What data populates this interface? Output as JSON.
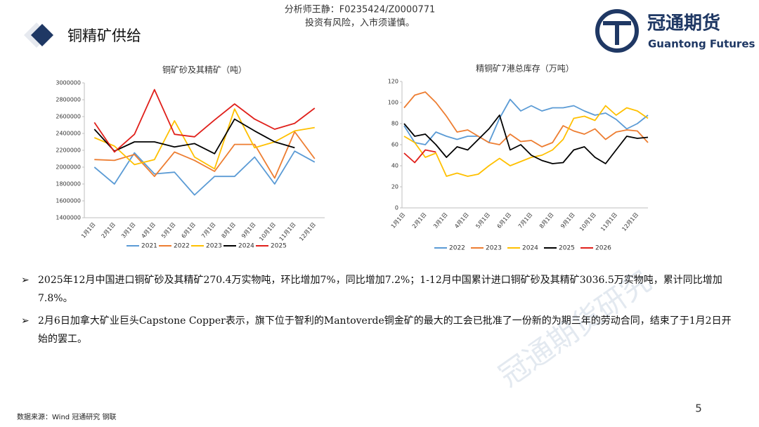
{
  "header": {
    "analyst": "分析师王静：F0235424/Z0000771",
    "risk": "投资有风险，入市须谨慎。",
    "section": "铜精矿供给",
    "logo_cn": "冠通期货",
    "logo_en": "Guantong Futures"
  },
  "chart_data": [
    {
      "type": "line",
      "title": "铜矿砂及其精矿（吨）",
      "categories": [
        "1月1日",
        "2月1日",
        "3月1日",
        "4月1日",
        "5月1日",
        "6月1日",
        "7月1日",
        "8月1日",
        "9月1日",
        "10月1日",
        "11月1日",
        "12月1日"
      ],
      "ylim": [
        1400000,
        3000000
      ],
      "yticks": [
        1400000,
        1600000,
        1800000,
        2000000,
        2200000,
        2400000,
        2600000,
        2800000,
        3000000
      ],
      "grid": false,
      "legend": "bottom",
      "series": [
        {
          "name": "2021",
          "color": "#5b9bd5",
          "values": [
            2000000,
            1800000,
            2170000,
            1920000,
            1940000,
            1670000,
            1890000,
            1890000,
            2120000,
            1800000,
            2190000,
            2060000
          ]
        },
        {
          "name": "2022",
          "color": "#ed7d31",
          "values": [
            2090000,
            2080000,
            2150000,
            1890000,
            2180000,
            2080000,
            1950000,
            2270000,
            2270000,
            1870000,
            2420000,
            2100000
          ]
        },
        {
          "name": "2023",
          "color": "#ffc000",
          "values": [
            2350000,
            2250000,
            2030000,
            2090000,
            2550000,
            2120000,
            1980000,
            2690000,
            2230000,
            2300000,
            2430000,
            2470000
          ]
        },
        {
          "name": "2024",
          "color": "#000000",
          "values": [
            2450000,
            2190000,
            2300000,
            2300000,
            2240000,
            2280000,
            2160000,
            2570000,
            2430000,
            2300000,
            2230000,
            null
          ]
        },
        {
          "name": "2025",
          "color": "#e0201b",
          "values": [
            2530000,
            2180000,
            2390000,
            2920000,
            2390000,
            2360000,
            2560000,
            2750000,
            2570000,
            2450000,
            2520000,
            2700000
          ]
        }
      ]
    },
    {
      "type": "line",
      "title": "精铜矿7港总库存（万吨）",
      "categories": [
        "1月1日",
        null,
        "2月1日",
        null,
        "3月1日",
        null,
        "4月1日",
        null,
        "5月1日",
        null,
        "6月1日",
        null,
        "7月1日",
        null,
        "8月1日",
        null,
        "9月1日",
        null,
        "10月1日",
        null,
        "11月1日",
        null,
        "12月1日",
        null
      ],
      "ylim": [
        0,
        120
      ],
      "yticks": [
        0,
        20,
        40,
        60,
        80,
        100,
        120
      ],
      "grid": false,
      "legend": "bottom",
      "series": [
        {
          "name": "2022",
          "color": "#5b9bd5",
          "values": [
            78,
            62,
            60,
            72,
            68,
            65,
            68,
            68,
            62,
            85,
            103,
            92,
            97,
            92,
            95,
            95,
            97,
            92,
            88,
            90,
            84,
            75,
            80,
            88
          ]
        },
        {
          "name": "2023",
          "color": "#ed7d31",
          "values": [
            95,
            107,
            110,
            100,
            87,
            72,
            74,
            68,
            62,
            60,
            70,
            63,
            64,
            58,
            62,
            78,
            73,
            70,
            75,
            65,
            72,
            74,
            73,
            62
          ]
        },
        {
          "name": "2024",
          "color": "#ffc000",
          "values": [
            68,
            62,
            48,
            52,
            30,
            33,
            30,
            32,
            40,
            47,
            40,
            44,
            48,
            50,
            55,
            65,
            85,
            87,
            83,
            97,
            88,
            95,
            92,
            85
          ]
        },
        {
          "name": "2025",
          "color": "#000000",
          "values": [
            80,
            68,
            70,
            60,
            48,
            58,
            55,
            65,
            75,
            88,
            55,
            60,
            50,
            45,
            42,
            43,
            55,
            58,
            48,
            42,
            55,
            68,
            66,
            67
          ]
        },
        {
          "name": "2026",
          "color": "#e0201b",
          "values": [
            52,
            43,
            55,
            53,
            null,
            null,
            null,
            null,
            null,
            null,
            null,
            null,
            null,
            null,
            null,
            null,
            null,
            null,
            null,
            null,
            null,
            null,
            null,
            null
          ]
        }
      ]
    }
  ],
  "bullets": [
    "2025年12月中国进口铜矿砂及其精矿270.4万实物吨，环比增加7%，同比增加7.2%；1-12月中国累计进口铜矿砂及其精矿3036.5万实物吨，累计同比增加7.8%。",
    "2月6日加拿大矿业巨头Capstone Copper表示，旗下位于智利的Mantoverde铜金矿的最大的工会已批准了一份新的为期三年的劳动合同，结束了于1月2日开始的罢工。"
  ],
  "footer": {
    "source": "数据来源：Wind 冠通研究 钢联",
    "page": "5",
    "watermark": "冠通期货研究"
  }
}
